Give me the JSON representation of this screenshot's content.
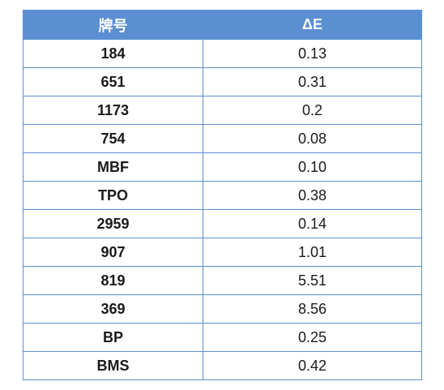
{
  "table": {
    "header": [
      "牌号",
      "ΔE"
    ],
    "rows": [
      [
        "184",
        "0.13"
      ],
      [
        "651",
        "0.31"
      ],
      [
        "1173",
        "0.2"
      ],
      [
        "754",
        "0.08"
      ],
      [
        "MBF",
        "0.10"
      ],
      [
        "TPO",
        "0.38"
      ],
      [
        "2959",
        "0.14"
      ],
      [
        "907",
        "1.01"
      ],
      [
        "819",
        "5.51"
      ],
      [
        "369",
        "8.56"
      ],
      [
        "BP",
        "0.25"
      ],
      [
        "BMS",
        "0.42"
      ]
    ]
  }
}
